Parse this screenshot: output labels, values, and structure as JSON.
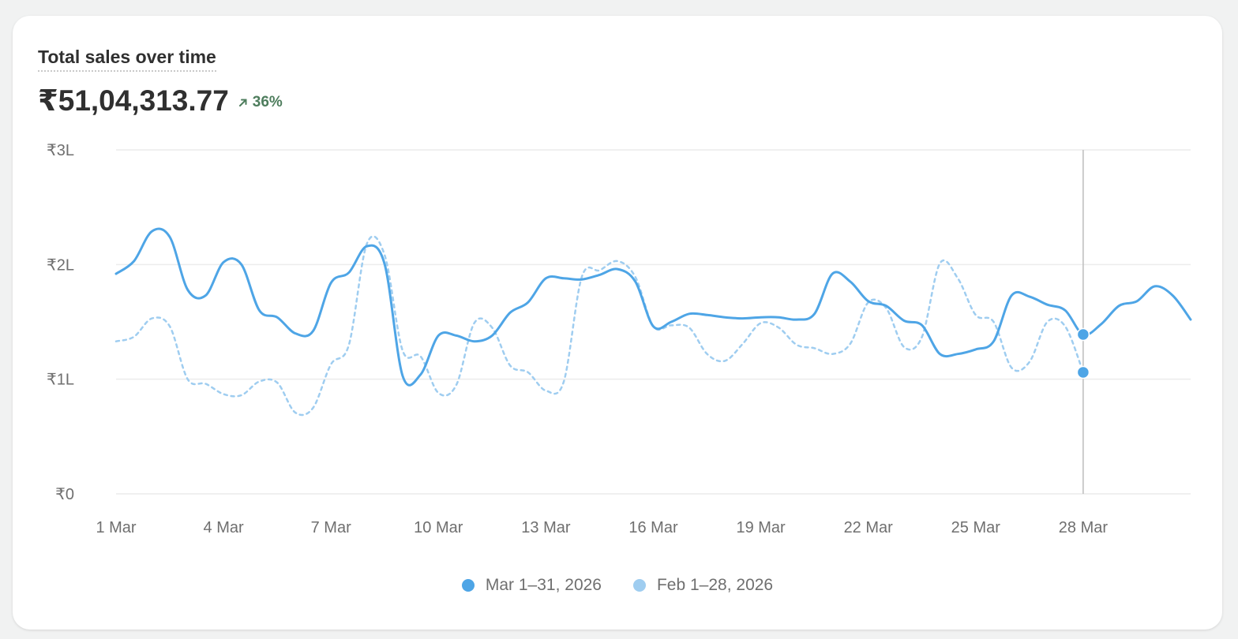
{
  "card": {
    "title": "Total sales over time",
    "metric": "₹51,04,313.77",
    "delta": "36%",
    "delta_icon": "arrow-up-right-icon"
  },
  "colors": {
    "current": "#4ea5e6",
    "previous": "#9fcdf0",
    "grid": "#ececec",
    "crosshair": "#bdbdbd",
    "delta_positive": "#4e7d5d"
  },
  "legend": [
    {
      "label": "Mar 1–31, 2026"
    },
    {
      "label": "Feb 1–28, 2026"
    }
  ],
  "chart_data": {
    "type": "line",
    "title": "Total sales over time",
    "xlabel": "",
    "ylabel": "",
    "y_ticks": [
      "₹0",
      "₹1L",
      "₹2L",
      "₹3L"
    ],
    "y_tick_values": [
      0,
      100000,
      200000,
      300000
    ],
    "ylim": [
      0,
      300000
    ],
    "x_ticks": [
      "1 Mar",
      "4 Mar",
      "7 Mar",
      "10 Mar",
      "13 Mar",
      "16 Mar",
      "19 Mar",
      "22 Mar",
      "25 Mar",
      "28 Mar"
    ],
    "x_tick_days": [
      1,
      4,
      7,
      10,
      13,
      16,
      19,
      22,
      25,
      28
    ],
    "xlim": [
      1,
      31
    ],
    "grid": true,
    "legend_position": "bottom",
    "hover_day": 28,
    "series": [
      {
        "name": "Mar 1–31, 2026",
        "style": "solid",
        "points": [
          [
            1,
            192000
          ],
          [
            1.5,
            203000
          ],
          [
            2,
            229000
          ],
          [
            2.5,
            224000
          ],
          [
            3,
            178000
          ],
          [
            3.5,
            173000
          ],
          [
            4,
            202000
          ],
          [
            4.5,
            200000
          ],
          [
            5,
            160000
          ],
          [
            5.5,
            154000
          ],
          [
            6,
            140000
          ],
          [
            6.5,
            142000
          ],
          [
            7,
            184000
          ],
          [
            7.5,
            193000
          ],
          [
            8,
            216000
          ],
          [
            8.5,
            200000
          ],
          [
            9,
            103000
          ],
          [
            9.5,
            104000
          ],
          [
            10,
            138000
          ],
          [
            10.5,
            138000
          ],
          [
            11,
            133000
          ],
          [
            11.5,
            138000
          ],
          [
            12,
            158000
          ],
          [
            12.5,
            167000
          ],
          [
            13,
            188000
          ],
          [
            13.5,
            188000
          ],
          [
            14,
            187000
          ],
          [
            14.5,
            191000
          ],
          [
            15,
            196000
          ],
          [
            15.5,
            185000
          ],
          [
            16,
            146000
          ],
          [
            16.5,
            150000
          ],
          [
            17,
            157000
          ],
          [
            17.5,
            156000
          ],
          [
            18,
            154000
          ],
          [
            18.5,
            153000
          ],
          [
            19,
            154000
          ],
          [
            19.5,
            154000
          ],
          [
            20,
            152000
          ],
          [
            20.5,
            157000
          ],
          [
            21,
            192000
          ],
          [
            21.5,
            185000
          ],
          [
            22,
            168000
          ],
          [
            22.5,
            164000
          ],
          [
            23,
            151000
          ],
          [
            23.5,
            147000
          ],
          [
            24,
            122000
          ],
          [
            24.5,
            122000
          ],
          [
            25,
            126000
          ],
          [
            25.5,
            133000
          ],
          [
            26,
            173000
          ],
          [
            26.5,
            172000
          ],
          [
            27,
            165000
          ],
          [
            27.5,
            160000
          ],
          [
            28,
            139000
          ],
          [
            28.5,
            148000
          ],
          [
            29,
            164000
          ],
          [
            29.5,
            168000
          ],
          [
            30,
            181000
          ],
          [
            30.5,
            173000
          ],
          [
            31,
            152000
          ]
        ]
      },
      {
        "name": "Feb 1–28, 2026",
        "style": "dashed",
        "points": [
          [
            1,
            133000
          ],
          [
            1.5,
            137000
          ],
          [
            2,
            153000
          ],
          [
            2.5,
            146000
          ],
          [
            3,
            100000
          ],
          [
            3.5,
            96000
          ],
          [
            4,
            87000
          ],
          [
            4.5,
            86000
          ],
          [
            5,
            98000
          ],
          [
            5.5,
            97000
          ],
          [
            6,
            71000
          ],
          [
            6.5,
            75000
          ],
          [
            7,
            113000
          ],
          [
            7.5,
            130000
          ],
          [
            8,
            218000
          ],
          [
            8.5,
            208000
          ],
          [
            9,
            125000
          ],
          [
            9.5,
            120000
          ],
          [
            10,
            88000
          ],
          [
            10.5,
            95000
          ],
          [
            11,
            149000
          ],
          [
            11.5,
            145000
          ],
          [
            12,
            112000
          ],
          [
            12.5,
            106000
          ],
          [
            13,
            90000
          ],
          [
            13.5,
            98000
          ],
          [
            14,
            189000
          ],
          [
            14.5,
            195000
          ],
          [
            15,
            203000
          ],
          [
            15.5,
            189000
          ],
          [
            16,
            146000
          ],
          [
            16.5,
            147000
          ],
          [
            17,
            145000
          ],
          [
            17.5,
            122000
          ],
          [
            18,
            116000
          ],
          [
            18.5,
            131000
          ],
          [
            19,
            149000
          ],
          [
            19.5,
            145000
          ],
          [
            20,
            130000
          ],
          [
            20.5,
            127000
          ],
          [
            21,
            122000
          ],
          [
            21.5,
            131000
          ],
          [
            22,
            167000
          ],
          [
            22.5,
            162000
          ],
          [
            23,
            128000
          ],
          [
            23.5,
            137000
          ],
          [
            24,
            201000
          ],
          [
            24.5,
            188000
          ],
          [
            25,
            156000
          ],
          [
            25.5,
            150000
          ],
          [
            26,
            110000
          ],
          [
            26.5,
            115000
          ],
          [
            27,
            150000
          ],
          [
            27.5,
            146000
          ],
          [
            28,
            106000
          ]
        ]
      }
    ]
  }
}
